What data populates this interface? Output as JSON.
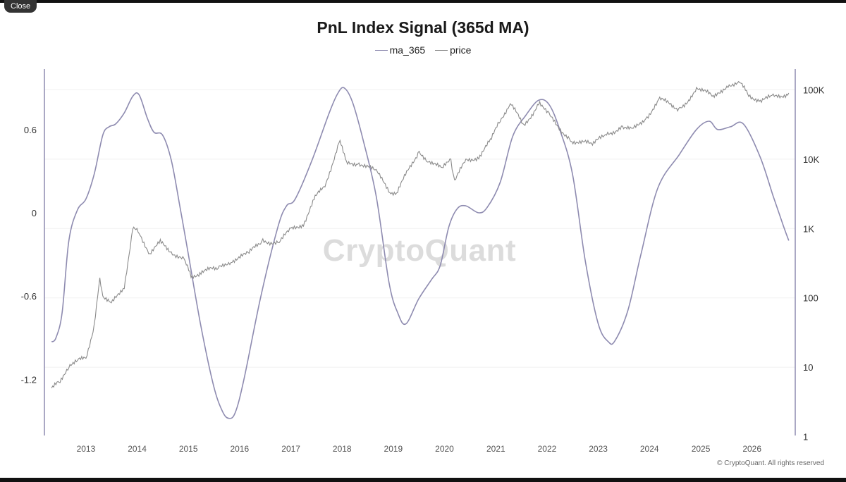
{
  "window": {
    "close_label": "Close"
  },
  "footer": {
    "copyright": "© CryptoQuant. All rights reserved"
  },
  "watermark": "CryptoQuant",
  "chart_data": {
    "type": "line",
    "title": "PnL Index Signal (365d MA)",
    "legend_position": "top-center",
    "grid": true,
    "x_axis": {
      "type": "date",
      "range": [
        "2012-04-15",
        "2026-10-01"
      ],
      "ticks": [
        "2013",
        "2014",
        "2015",
        "2016",
        "2017",
        "2018",
        "2019",
        "2020",
        "2021",
        "2022",
        "2023",
        "2024",
        "2025",
        "2026"
      ]
    },
    "y_left": {
      "range": [
        -1.55,
        1.0
      ],
      "ticks": [
        -1.2,
        -0.6,
        0,
        0.6
      ],
      "tick_labels": [
        "-1.2",
        "-0.6",
        "0",
        "0.6"
      ]
    },
    "y_right": {
      "scale": "log",
      "range": [
        1,
        200000
      ],
      "ticks": [
        1,
        10,
        100,
        1000,
        10000,
        100000
      ],
      "tick_labels": [
        "1",
        "10",
        "100",
        "1K",
        "10K",
        "100K"
      ]
    },
    "colors": {
      "ma_365": "#8e8bb0",
      "price": "#8a8a8a",
      "axis": "#8e8bb0"
    },
    "series": [
      {
        "name": "ma_365",
        "axis": "left",
        "points": [
          [
            "2012-05-01",
            -0.93
          ],
          [
            "2012-06-01",
            -0.9
          ],
          [
            "2012-07-15",
            -0.72
          ],
          [
            "2012-09-01",
            -0.2
          ],
          [
            "2012-11-01",
            0.02
          ],
          [
            "2013-01-01",
            0.1
          ],
          [
            "2013-03-01",
            0.28
          ],
          [
            "2013-05-01",
            0.56
          ],
          [
            "2013-06-15",
            0.62
          ],
          [
            "2013-08-01",
            0.64
          ],
          [
            "2013-10-01",
            0.72
          ],
          [
            "2013-12-01",
            0.84
          ],
          [
            "2014-01-15",
            0.85
          ],
          [
            "2014-03-15",
            0.68
          ],
          [
            "2014-05-01",
            0.58
          ],
          [
            "2014-07-01",
            0.56
          ],
          [
            "2014-09-01",
            0.38
          ],
          [
            "2014-11-01",
            0.05
          ],
          [
            "2015-01-01",
            -0.3
          ],
          [
            "2015-04-01",
            -0.82
          ],
          [
            "2015-07-01",
            -1.25
          ],
          [
            "2015-09-01",
            -1.43
          ],
          [
            "2015-10-15",
            -1.48
          ],
          [
            "2015-12-01",
            -1.44
          ],
          [
            "2016-02-01",
            -1.2
          ],
          [
            "2016-06-01",
            -0.6
          ],
          [
            "2016-10-01",
            -0.1
          ],
          [
            "2016-12-01",
            0.05
          ],
          [
            "2017-02-01",
            0.1
          ],
          [
            "2017-06-01",
            0.38
          ],
          [
            "2017-10-01",
            0.72
          ],
          [
            "2017-12-01",
            0.86
          ],
          [
            "2018-01-15",
            0.9
          ],
          [
            "2018-03-15",
            0.8
          ],
          [
            "2018-06-01",
            0.52
          ],
          [
            "2018-09-01",
            0.12
          ],
          [
            "2018-12-01",
            -0.5
          ],
          [
            "2019-02-01",
            -0.72
          ],
          [
            "2019-04-01",
            -0.8
          ],
          [
            "2019-07-01",
            -0.62
          ],
          [
            "2019-10-01",
            -0.48
          ],
          [
            "2019-12-01",
            -0.38
          ],
          [
            "2020-02-01",
            -0.1
          ],
          [
            "2020-04-01",
            0.03
          ],
          [
            "2020-06-01",
            0.05
          ],
          [
            "2020-09-01",
            0.0
          ],
          [
            "2020-11-01",
            0.04
          ],
          [
            "2021-02-01",
            0.22
          ],
          [
            "2021-05-01",
            0.55
          ],
          [
            "2021-08-01",
            0.7
          ],
          [
            "2021-11-01",
            0.81
          ],
          [
            "2022-01-15",
            0.78
          ],
          [
            "2022-04-01",
            0.6
          ],
          [
            "2022-07-01",
            0.28
          ],
          [
            "2022-10-01",
            -0.35
          ],
          [
            "2023-01-01",
            -0.8
          ],
          [
            "2023-03-15",
            -0.93
          ],
          [
            "2023-05-01",
            -0.92
          ],
          [
            "2023-08-01",
            -0.7
          ],
          [
            "2023-11-01",
            -0.3
          ],
          [
            "2024-03-01",
            0.18
          ],
          [
            "2024-08-01",
            0.42
          ],
          [
            "2024-12-01",
            0.6
          ],
          [
            "2025-03-01",
            0.66
          ],
          [
            "2025-05-01",
            0.6
          ],
          [
            "2025-08-01",
            0.62
          ],
          [
            "2025-11-01",
            0.64
          ],
          [
            "2026-03-01",
            0.4
          ],
          [
            "2026-06-01",
            0.12
          ],
          [
            "2026-08-15",
            -0.1
          ],
          [
            "2026-09-20",
            -0.2
          ]
        ]
      },
      {
        "name": "price",
        "axis": "right",
        "points": [
          [
            "2012-05-01",
            5
          ],
          [
            "2012-07-01",
            6
          ],
          [
            "2012-09-01",
            11
          ],
          [
            "2012-11-01",
            12
          ],
          [
            "2013-01-01",
            14
          ],
          [
            "2013-03-01",
            40
          ],
          [
            "2013-04-10",
            180
          ],
          [
            "2013-05-01",
            110
          ],
          [
            "2013-07-01",
            80
          ],
          [
            "2013-10-01",
            150
          ],
          [
            "2013-11-30",
            1000
          ],
          [
            "2014-01-15",
            850
          ],
          [
            "2014-04-01",
            450
          ],
          [
            "2014-06-15",
            620
          ],
          [
            "2014-09-01",
            470
          ],
          [
            "2014-12-01",
            350
          ],
          [
            "2015-01-20",
            200
          ],
          [
            "2015-04-01",
            240
          ],
          [
            "2015-08-01",
            260
          ],
          [
            "2015-11-01",
            350
          ],
          [
            "2016-03-01",
            420
          ],
          [
            "2016-06-15",
            680
          ],
          [
            "2016-10-01",
            620
          ],
          [
            "2017-01-01",
            950
          ],
          [
            "2017-04-01",
            1200
          ],
          [
            "2017-06-15",
            2600
          ],
          [
            "2017-09-01",
            4200
          ],
          [
            "2017-12-17",
            19000
          ],
          [
            "2018-02-01",
            8500
          ],
          [
            "2018-05-01",
            9000
          ],
          [
            "2018-09-01",
            6500
          ],
          [
            "2018-12-15",
            3300
          ],
          [
            "2019-02-01",
            3500
          ],
          [
            "2019-06-26",
            12500
          ],
          [
            "2019-09-01",
            10000
          ],
          [
            "2019-12-15",
            7000
          ],
          [
            "2020-02-15",
            10000
          ],
          [
            "2020-03-13",
            4800
          ],
          [
            "2020-06-01",
            9500
          ],
          [
            "2020-09-01",
            11000
          ],
          [
            "2020-12-01",
            19000
          ],
          [
            "2021-02-01",
            38000
          ],
          [
            "2021-04-14",
            63000
          ],
          [
            "2021-07-20",
            30000
          ],
          [
            "2021-11-10",
            68000
          ],
          [
            "2022-01-15",
            42000
          ],
          [
            "2022-06-18",
            19000
          ],
          [
            "2022-11-21",
            16000
          ],
          [
            "2023-03-01",
            23000
          ],
          [
            "2023-07-01",
            30000
          ],
          [
            "2023-09-01",
            26000
          ],
          [
            "2023-12-15",
            42000
          ],
          [
            "2024-03-14",
            72000
          ],
          [
            "2024-08-05",
            54000
          ],
          [
            "2024-12-17",
            106000
          ],
          [
            "2025-04-07",
            76000
          ],
          [
            "2025-07-14",
            122000
          ],
          [
            "2025-10-06",
            124000
          ],
          [
            "2025-12-01",
            87000
          ],
          [
            "2026-03-01",
            70000
          ],
          [
            "2026-06-01",
            78000
          ],
          [
            "2026-09-20",
            90000
          ]
        ]
      }
    ]
  }
}
